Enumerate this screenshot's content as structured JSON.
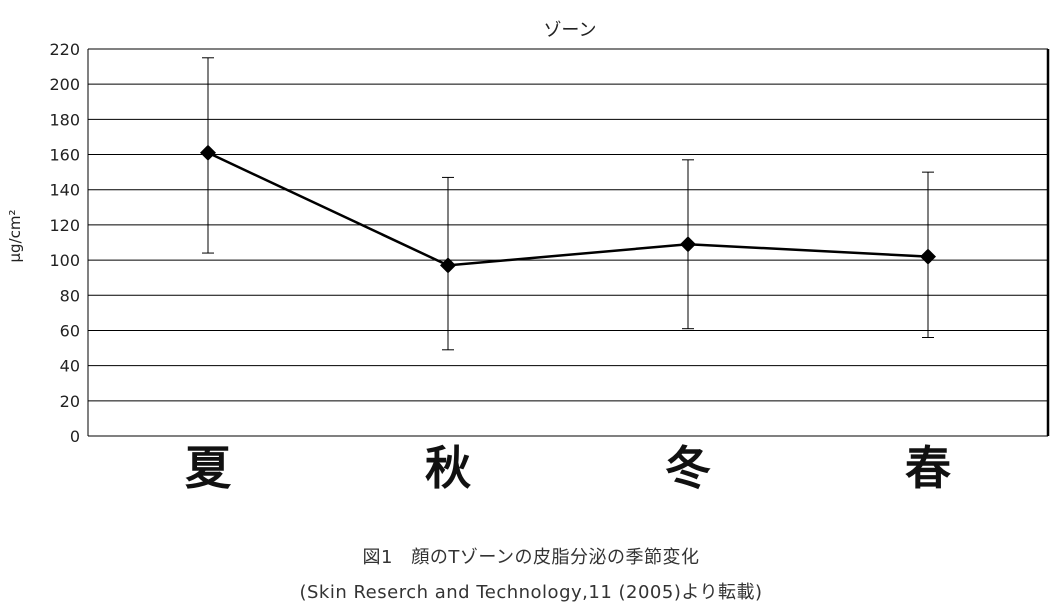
{
  "chart_data": {
    "type": "line",
    "title": "ゾーン",
    "xlabel": "",
    "ylabel": "μg/cm²",
    "categories": [
      "夏",
      "秋",
      "冬",
      "春"
    ],
    "ylim": [
      0,
      220
    ],
    "yticks": [
      0,
      20,
      40,
      60,
      80,
      100,
      120,
      140,
      160,
      180,
      200,
      220
    ],
    "grid": "horizontal",
    "series": [
      {
        "values": [
          161,
          97,
          109,
          102
        ],
        "error_low": [
          104,
          49,
          61,
          56
        ],
        "error_high": [
          215,
          147,
          157,
          150
        ],
        "marker": "diamond",
        "color": "#000000"
      }
    ]
  },
  "captions": {
    "line1": "図1　顔のTゾーンの皮脂分泌の季節変化",
    "line2": "(Skin Reserch and Technology,11 (2005)より転載)"
  }
}
